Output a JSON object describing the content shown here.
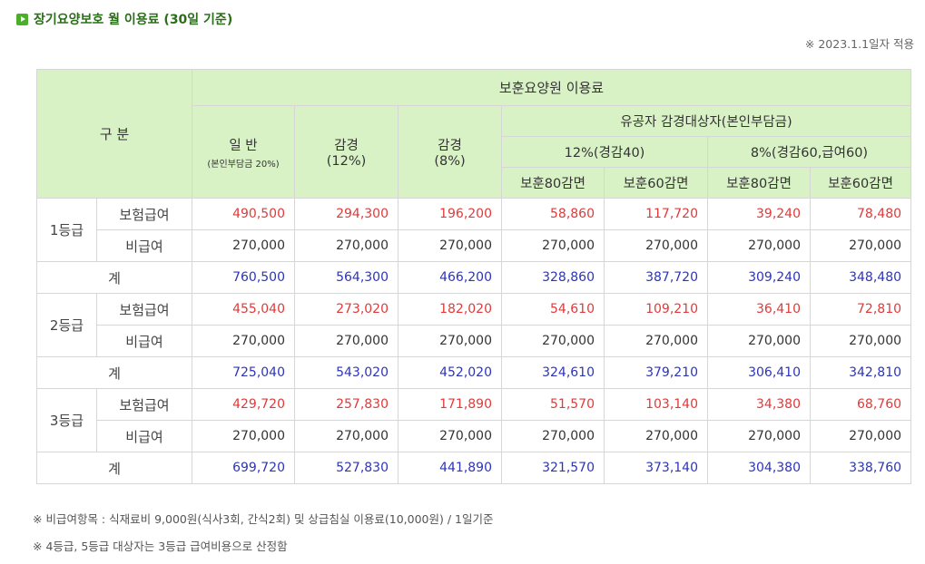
{
  "title": "장기요양보호 월 이용료 (30일 기준)",
  "applied_date": "※ 2023.1.1일자 적용",
  "header": {
    "category": "구 분",
    "main_group": "보훈요양원 이용료",
    "general": "일 반",
    "general_sub": "(본인부담금 20%)",
    "reduced12": "감경\n(12%)",
    "reduced8": "감경\n(8%)",
    "merit_group": "유공자 감경대상자(본인부담금)",
    "merit12": "12%(경감40)",
    "merit8": "8%(경감60,급여60)",
    "sub_cols": [
      "보훈80감면",
      "보훈60감면",
      "보훈80감면",
      "보훈60감면"
    ]
  },
  "labels": {
    "insured": "보험급여",
    "uninsured": "비급여",
    "total": "계"
  },
  "grades": [
    {
      "name": "1등급",
      "insured": [
        "490,500",
        "294,300",
        "196,200",
        "58,860",
        "117,720",
        "39,240",
        "78,480"
      ],
      "uninsured": [
        "270,000",
        "270,000",
        "270,000",
        "270,000",
        "270,000",
        "270,000",
        "270,000"
      ],
      "total": [
        "760,500",
        "564,300",
        "466,200",
        "328,860",
        "387,720",
        "309,240",
        "348,480"
      ]
    },
    {
      "name": "2등급",
      "insured": [
        "455,040",
        "273,020",
        "182,020",
        "54,610",
        "109,210",
        "36,410",
        "72,810"
      ],
      "uninsured": [
        "270,000",
        "270,000",
        "270,000",
        "270,000",
        "270,000",
        "270,000",
        "270,000"
      ],
      "total": [
        "725,040",
        "543,020",
        "452,020",
        "324,610",
        "379,210",
        "306,410",
        "342,810"
      ]
    },
    {
      "name": "3등급",
      "insured": [
        "429,720",
        "257,830",
        "171,890",
        "51,570",
        "103,140",
        "34,380",
        "68,760"
      ],
      "uninsured": [
        "270,000",
        "270,000",
        "270,000",
        "270,000",
        "270,000",
        "270,000",
        "270,000"
      ],
      "total": [
        "699,720",
        "527,830",
        "441,890",
        "321,570",
        "373,140",
        "304,380",
        "338,760"
      ]
    }
  ],
  "notes": [
    "※ 비급여항목 : 식재료비 9,000원(식사3회, 간식2회) 및 상급침실 이용료(10,000원) / 1일기준",
    "※ 4등급, 5등급 대상자는 3등급 급여비용으로 산정함"
  ],
  "colors": {
    "header_bg": "#d8f2c6",
    "insured": "#e03a3a",
    "total": "#2d35b8"
  }
}
